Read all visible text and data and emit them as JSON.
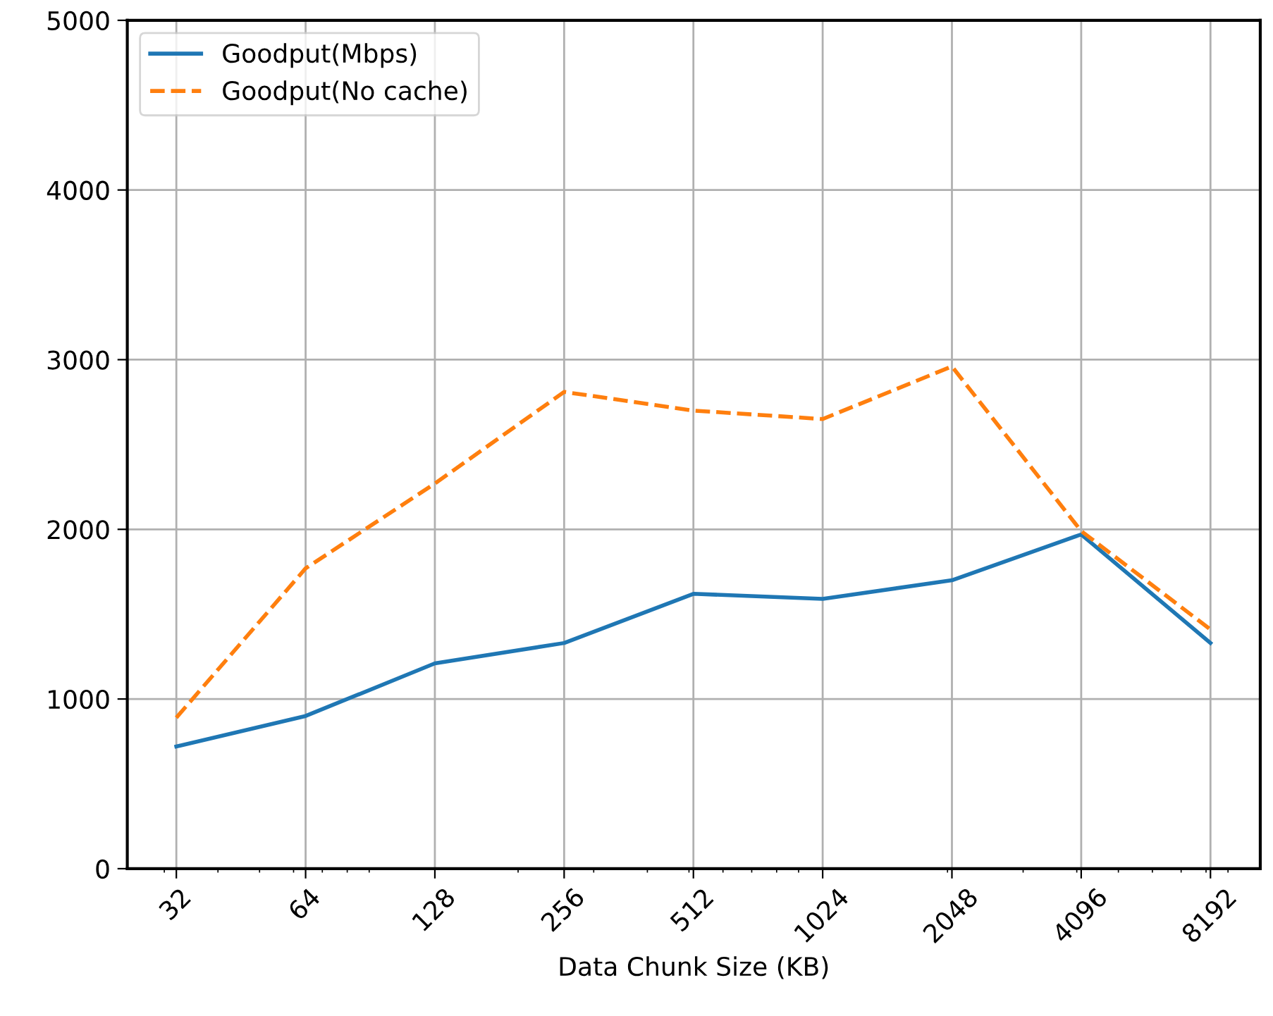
{
  "chart_data": {
    "type": "line",
    "xlabel": "Data Chunk Size (KB)",
    "x": [
      32,
      64,
      128,
      256,
      512,
      1024,
      2048,
      4096,
      8192
    ],
    "series": [
      {
        "name": "Goodput(Mbps)",
        "color": "#1f77b4",
        "line_style": "solid",
        "values": [
          720,
          900,
          1210,
          1330,
          1620,
          1590,
          1700,
          1970,
          1330
        ]
      },
      {
        "name": "Goodput(No cache)",
        "color": "#ff7f0e",
        "line_style": "dashed",
        "values": [
          890,
          1770,
          2270,
          2810,
          2700,
          2650,
          2960,
          1990,
          1410
        ]
      }
    ],
    "log": "x",
    "xlim": [
      24.6,
      10700
    ],
    "xticks": [
      32,
      64,
      128,
      256,
      512,
      1024,
      2048,
      4096,
      8192
    ],
    "ylim": [
      0,
      5000
    ],
    "yticks": [
      0,
      1000,
      2000,
      3000,
      4000,
      5000
    ],
    "grid": true,
    "legend": "top left"
  }
}
